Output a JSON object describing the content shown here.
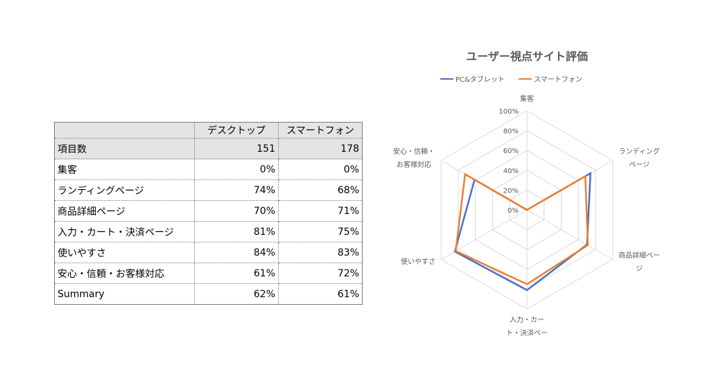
{
  "table": {
    "headers": [
      "",
      "デスクトップ",
      "スマートフォン"
    ],
    "rows": [
      [
        "項目数",
        "151",
        "178"
      ],
      [
        "集客",
        "0%",
        "0%"
      ],
      [
        "ランディングページ",
        "74%",
        "68%"
      ],
      [
        "商品詳細ページ",
        "70%",
        "71%"
      ],
      [
        "入力・カート・決済ページ",
        "81%",
        "75%"
      ],
      [
        "使いやすさ",
        "84%",
        "83%"
      ],
      [
        "安心・信頼・お客様対応",
        "61%",
        "72%"
      ],
      [
        "Summary",
        "62%",
        "61%"
      ]
    ]
  },
  "chart_data": {
    "type": "radar",
    "title": "ユーザー視点サイト評価",
    "categories": [
      [
        "集客"
      ],
      [
        "ランディング",
        "ページ"
      ],
      [
        "商品詳細ペー",
        "ジ"
      ],
      [
        "入力・カー",
        "ト・決済ペー"
      ],
      [
        "使いやすさ"
      ],
      [
        "安心・信頼・",
        "お客様対応"
      ]
    ],
    "ticks": [
      "0%",
      "20%",
      "40%",
      "60%",
      "80%",
      "100%"
    ],
    "rmax": 100,
    "legend_position": "top",
    "series": [
      {
        "name": "PC&タブレット",
        "color": "#4472c4",
        "values": [
          0,
          74,
          70,
          81,
          84,
          61
        ]
      },
      {
        "name": "スマートフォン",
        "color": "#ed7d31",
        "values": [
          0,
          68,
          71,
          75,
          83,
          72
        ]
      }
    ]
  }
}
